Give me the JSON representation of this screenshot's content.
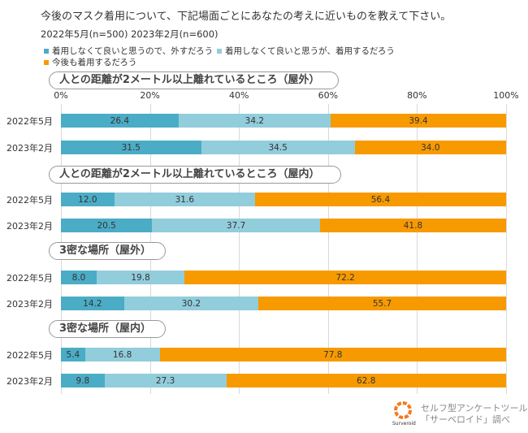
{
  "colors": [
    "#4bacc6",
    "#92cddc",
    "#f79a00"
  ],
  "chart_data": {
    "type": "bar",
    "stacked": true,
    "orientation": "horizontal",
    "title": "今後のマスク着用について、下記場面ごとにあなたの考えに近いものを教えて下さい。",
    "subtitle": "2022年5月(n=500)  2023年2月(n=600)",
    "legend": [
      "着用しなくて良いと思うので、外すだろう",
      "着用しなくて良いと思うが、着用するだろう",
      "今後も着用するだろう"
    ],
    "legend_position": "top-left",
    "xlim": [
      0,
      100
    ],
    "xticks": [
      "0%",
      "20%",
      "40%",
      "60%",
      "80%",
      "100%"
    ],
    "grid": true,
    "groups": [
      {
        "label": "人との距離が2メートル以上離れているところ（屋外）",
        "rows": [
          {
            "label": "2022年5月",
            "values": [
              26.4,
              34.2,
              39.4
            ]
          },
          {
            "label": "2023年2月",
            "values": [
              31.5,
              34.5,
              34.0
            ]
          }
        ]
      },
      {
        "label": "人との距離が2メートル以上離れているところ（屋内）",
        "rows": [
          {
            "label": "2022年5月",
            "values": [
              12.0,
              31.6,
              56.4
            ]
          },
          {
            "label": "2023年2月",
            "values": [
              20.5,
              37.7,
              41.8
            ]
          }
        ]
      },
      {
        "label": "3密な場所（屋外）",
        "rows": [
          {
            "label": "2022年5月",
            "values": [
              8.0,
              19.8,
              72.2
            ]
          },
          {
            "label": "2023年2月",
            "values": [
              14.2,
              30.2,
              55.7
            ]
          }
        ]
      },
      {
        "label": "3密な場所（屋内）",
        "rows": [
          {
            "label": "2022年5月",
            "values": [
              5.4,
              16.8,
              77.8
            ]
          },
          {
            "label": "2023年2月",
            "values": [
              9.8,
              27.3,
              62.8
            ]
          }
        ]
      }
    ]
  },
  "credit": {
    "line1": "セルフ型アンケートツール",
    "line2": "「サーベロイド」調べ",
    "logo_text": "Surveroid"
  }
}
